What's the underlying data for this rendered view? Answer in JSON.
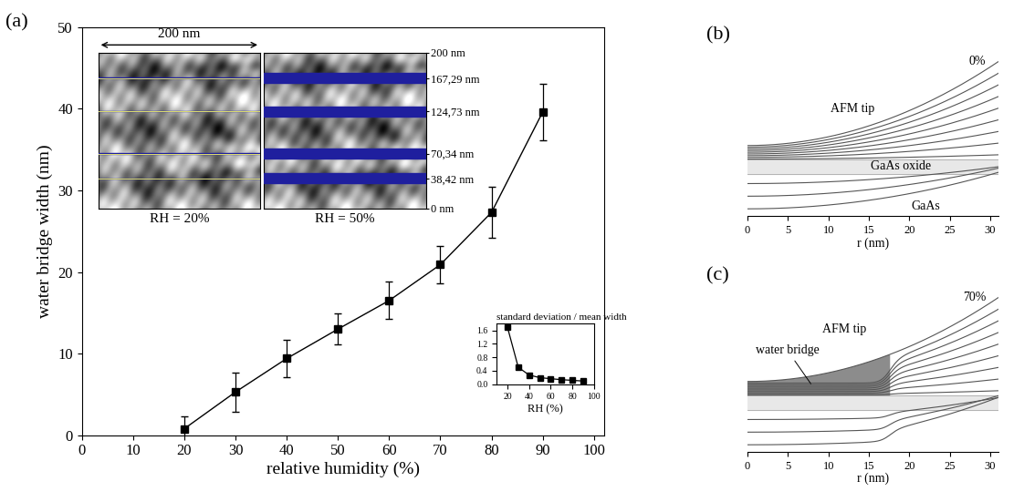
{
  "panel_labels": [
    "(a)",
    "(b)",
    "(c)"
  ],
  "chart_data": [
    {
      "type": "line",
      "xlabel": "relative humidity (%)",
      "ylabel": "water bridge width (nm)",
      "x": [
        20,
        30,
        40,
        50,
        60,
        70,
        80,
        90
      ],
      "values": [
        0.8,
        5.3,
        9.4,
        13.0,
        16.5,
        20.9,
        27.3,
        39.6
      ],
      "errors": [
        1.5,
        2.4,
        2.3,
        1.9,
        2.3,
        2.3,
        3.1,
        3.5
      ],
      "color": "#000000",
      "marker": "square",
      "line_style": "solid",
      "xlim": [
        0,
        102
      ],
      "xticks": [
        0,
        10,
        20,
        30,
        40,
        50,
        60,
        70,
        80,
        90,
        100
      ],
      "ylim": [
        0,
        50
      ],
      "yticks": [
        0,
        10,
        20,
        30,
        40,
        50
      ]
    },
    {
      "type": "line",
      "title": "standard deviation / mean width",
      "xlabel": "RH (%)",
      "x": [
        20,
        30,
        40,
        50,
        60,
        70,
        80,
        90
      ],
      "values": [
        1.7,
        0.5,
        0.27,
        0.19,
        0.16,
        0.13,
        0.11,
        0.09
      ],
      "color": "#000000",
      "marker": "square",
      "line_style": "solid",
      "xlim": [
        10,
        100
      ],
      "xticks": [
        20,
        40,
        60,
        80,
        100
      ],
      "ylim": [
        0,
        1.8
      ],
      "yticks": [
        {
          "value": 0,
          "label": "0.0"
        },
        0.4,
        0.8,
        1.2,
        1.6
      ]
    },
    {
      "type": "image",
      "title": "RH = 20%",
      "scale_label": "200 nm",
      "lines": [
        38.42,
        70.34,
        124.73,
        167.29
      ],
      "band_width": 0.8,
      "xlim": [
        0,
        200
      ],
      "ylim": [
        0,
        200
      ],
      "color": "#1f1f9e"
    },
    {
      "type": "image",
      "title": "RH = 50%",
      "lines": [
        38.42,
        70.34,
        124.73,
        167.29
      ],
      "band_width": 13.0,
      "ylim": [
        0,
        200
      ],
      "yticks": [
        {
          "value": 0,
          "label": "0 nm"
        },
        {
          "value": 38.42,
          "label": "38,42 nm"
        },
        {
          "value": 70.34,
          "label": "70,34 nm"
        },
        {
          "value": 124.73,
          "label": "124,73 nm"
        },
        {
          "value": 167.29,
          "label": "167,29 nm"
        },
        {
          "value": 200,
          "label": "200 nm"
        }
      ],
      "color": "#1f1f9e"
    },
    {
      "type": "diagram",
      "title": "0%",
      "annotations": [
        "AFM tip",
        "GaAs oxide",
        "GaAs"
      ],
      "xlabel": "r (nm)",
      "xlim": [
        0,
        31
      ],
      "xticks": [
        0,
        5,
        10,
        15,
        20,
        25,
        30
      ],
      "tick_labels": "x"
    },
    {
      "type": "diagram",
      "title": "70%",
      "annotations": [
        "water bridge",
        "AFM tip"
      ],
      "xlabel": "r (nm)",
      "xlim": [
        0,
        31
      ],
      "xticks": [
        0,
        5,
        10,
        15,
        20,
        25,
        30
      ],
      "tick_labels": "x"
    }
  ]
}
